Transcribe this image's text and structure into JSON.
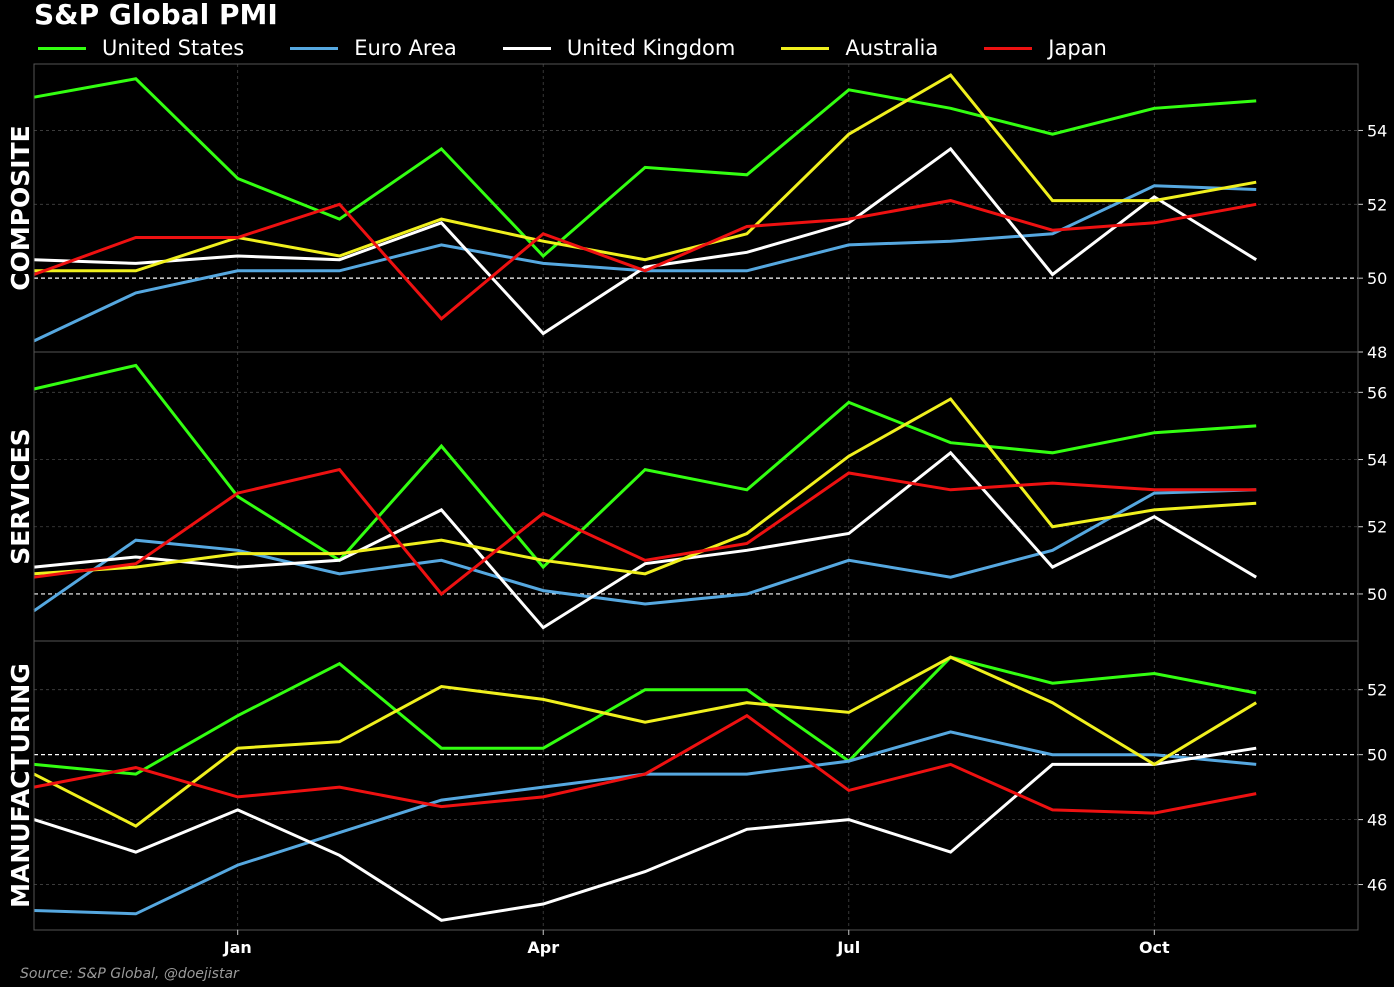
{
  "title": "S&P Global PMI",
  "source": "Source: S&P Global, @doejistar",
  "chart_data": {
    "type": "line",
    "x": [
      "2022-11",
      "2022-12",
      "2023-01",
      "2023-02",
      "2023-03",
      "2023-04",
      "2023-05",
      "2023-06",
      "2023-07",
      "2023-08",
      "2023-09",
      "2023-10",
      "2023-11"
    ],
    "x_tick_labels": [
      {
        "label": "Jan",
        "index": 2
      },
      {
        "label": "Apr",
        "index": 5
      },
      {
        "label": "Jul",
        "index": 8
      },
      {
        "label": "Oct",
        "index": 11
      }
    ],
    "x_range": [
      0,
      13
    ],
    "reference_line": 50,
    "colors": {
      "United States": "#33ff11",
      "Euro Area": "#56a8e0",
      "United Kingdom": "#ffffff",
      "Australia": "#f0f01e",
      "Japan": "#ee1111"
    },
    "legend": [
      "United States",
      "Euro Area",
      "United Kingdom",
      "Australia",
      "Japan"
    ],
    "panels": [
      {
        "name": "COMPOSITE",
        "ylim": [
          48,
          55.8
        ],
        "yticks": [
          48,
          50,
          52,
          54
        ],
        "series": [
          {
            "name": "United States",
            "values": [
              54.9,
              55.4,
              52.7,
              51.6,
              53.5,
              50.6,
              53.0,
              52.8,
              55.1,
              54.6,
              53.9,
              54.6,
              54.8
            ]
          },
          {
            "name": "Euro Area",
            "values": [
              48.3,
              49.6,
              50.2,
              50.2,
              50.9,
              50.4,
              50.2,
              50.2,
              50.9,
              51.0,
              51.2,
              52.5,
              52.4
            ]
          },
          {
            "name": "United Kingdom",
            "values": [
              50.5,
              50.4,
              50.6,
              50.5,
              51.5,
              48.5,
              50.3,
              50.7,
              51.5,
              53.5,
              50.1,
              52.2,
              50.5
            ]
          },
          {
            "name": "Australia",
            "values": [
              50.2,
              50.2,
              51.1,
              50.6,
              51.6,
              51.0,
              50.5,
              51.2,
              53.9,
              55.5,
              52.1,
              52.1,
              52.6
            ]
          },
          {
            "name": "Japan",
            "values": [
              50.1,
              51.1,
              51.1,
              52.0,
              48.9,
              51.2,
              50.2,
              51.4,
              51.6,
              52.1,
              51.3,
              51.5,
              52.0
            ]
          }
        ]
      },
      {
        "name": "SERVICES",
        "ylim": [
          48.6,
          57.2
        ],
        "yticks": [
          50,
          52,
          54,
          56
        ],
        "series": [
          {
            "name": "United States",
            "values": [
              56.1,
              56.8,
              52.9,
              51.0,
              54.4,
              50.8,
              53.7,
              53.1,
              55.7,
              54.5,
              54.2,
              54.8,
              55.0
            ]
          },
          {
            "name": "Euro Area",
            "values": [
              49.5,
              51.6,
              51.3,
              50.6,
              51.0,
              50.1,
              49.7,
              50.0,
              51.0,
              50.5,
              51.3,
              53.0,
              53.1
            ]
          },
          {
            "name": "United Kingdom",
            "values": [
              50.8,
              51.1,
              50.8,
              51.0,
              52.5,
              49.0,
              50.9,
              51.3,
              51.8,
              54.2,
              50.8,
              52.3,
              50.5
            ]
          },
          {
            "name": "Australia",
            "values": [
              50.6,
              50.8,
              51.2,
              51.2,
              51.6,
              51.0,
              50.6,
              51.8,
              54.1,
              55.8,
              52.0,
              52.5,
              52.7
            ]
          },
          {
            "name": "Japan",
            "values": [
              50.5,
              50.9,
              53.0,
              53.7,
              50.0,
              52.4,
              51.0,
              51.5,
              53.6,
              53.1,
              53.3,
              53.1,
              53.1
            ]
          }
        ]
      },
      {
        "name": "MANUFACTURING",
        "ylim": [
          44.6,
          53.5
        ],
        "yticks": [
          46,
          48,
          50,
          52
        ],
        "series": [
          {
            "name": "United States",
            "values": [
              49.7,
              49.4,
              51.2,
              52.8,
              50.2,
              50.2,
              52.0,
              52.0,
              49.8,
              53.0,
              52.2,
              52.5,
              51.9
            ]
          },
          {
            "name": "Euro Area",
            "values": [
              45.2,
              45.1,
              46.6,
              47.6,
              48.6,
              49.0,
              49.4,
              49.4,
              49.8,
              50.7,
              50.0,
              50.0,
              49.7
            ]
          },
          {
            "name": "United Kingdom",
            "values": [
              48.0,
              47.0,
              48.3,
              46.9,
              44.9,
              45.4,
              46.4,
              47.7,
              48.0,
              47.0,
              49.7,
              49.7,
              50.2
            ]
          },
          {
            "name": "Australia",
            "values": [
              49.4,
              47.8,
              50.2,
              50.4,
              52.1,
              51.7,
              51.0,
              51.6,
              51.3,
              53.0,
              51.6,
              49.7,
              51.6
            ]
          },
          {
            "name": "Japan",
            "values": [
              49.0,
              49.6,
              48.7,
              49.0,
              48.4,
              48.7,
              49.4,
              51.2,
              48.9,
              49.7,
              48.3,
              48.2,
              48.8
            ]
          }
        ]
      }
    ]
  }
}
